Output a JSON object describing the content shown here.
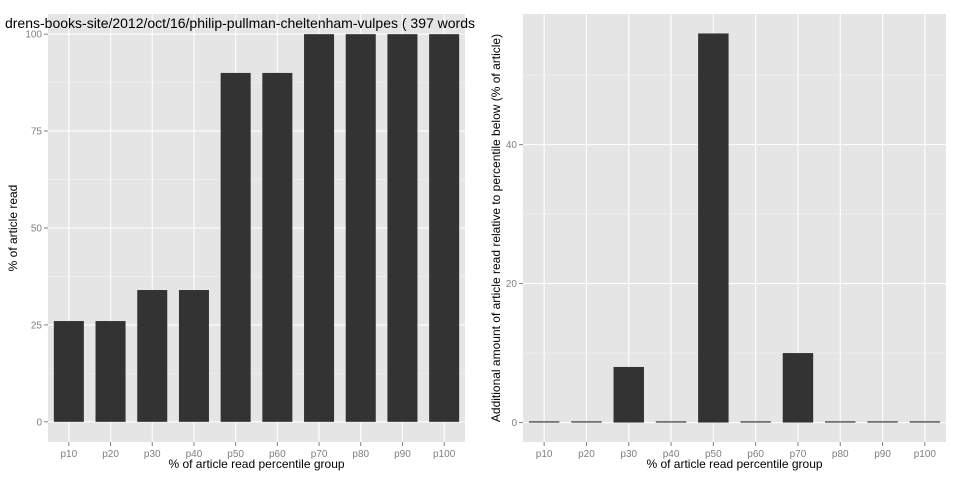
{
  "chart_data": [
    {
      "type": "bar",
      "title": "drens-books-site/2012/oct/16/philip-pullman-cheltenham-vulpes ( 397 words",
      "xlabel": "% of article read percentile group",
      "ylabel": "% of article read",
      "categories": [
        "p10",
        "p20",
        "p30",
        "p40",
        "p50",
        "p60",
        "p70",
        "p80",
        "p90",
        "p100"
      ],
      "values": [
        26,
        26,
        34,
        34,
        90,
        90,
        100,
        100,
        100,
        100
      ],
      "ylim": [
        -5.2,
        105.2
      ],
      "yticks": [
        0,
        25,
        50,
        75,
        100
      ],
      "grid": true,
      "bar_color": "#333333",
      "panel_color": "#e5e5e5"
    },
    {
      "type": "bar",
      "title": "",
      "xlabel": "% of article read percentile group",
      "ylabel": "Additional amount of article read relative to percentile below (% of article)",
      "categories": [
        "p10",
        "p20",
        "p30",
        "p40",
        "p50",
        "p60",
        "p70",
        "p80",
        "p90",
        "p100"
      ],
      "values": [
        0,
        0,
        8,
        0,
        56,
        0,
        10,
        0,
        0,
        0
      ],
      "ylim": [
        -2.8,
        58.8
      ],
      "yticks": [
        0,
        20,
        40
      ],
      "grid": true,
      "bar_color": "#333333",
      "panel_color": "#e5e5e5"
    }
  ]
}
